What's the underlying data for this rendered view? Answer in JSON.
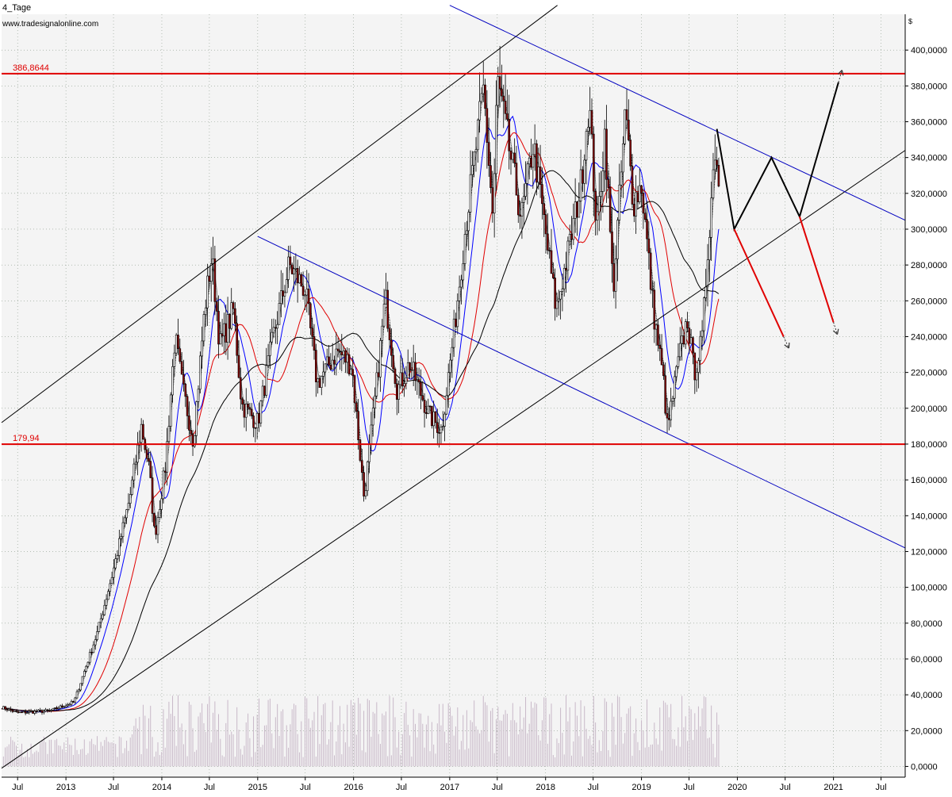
{
  "window_title": "4_Tage",
  "source": "www.tradesignalonline.com",
  "currency_label": "$",
  "colors": {
    "plot_bg": "#f4f4f4",
    "grid": "#8a9a8a",
    "resistance": "#e00000",
    "trend_black": "#000000",
    "trend_blue": "#0000c0",
    "ma_fast": "#000000",
    "ma_blue": "#0000ff",
    "ma_red": "#e00000",
    "ma_slow": "#000000",
    "candle_up": "#ffffff",
    "candle_down": "#8b0000",
    "volume": "#c8b8c8",
    "projection_up": "#000000",
    "projection_down": "#e00000"
  },
  "chart_data": {
    "type": "candlestick",
    "title": "4_Tage",
    "x_axis": {
      "type": "date",
      "range": [
        "2012-05-01",
        "2021-10-01"
      ],
      "ticks": [
        {
          "label": "Jul",
          "date": "2012-07-01"
        },
        {
          "label": "2013",
          "date": "2013-01-01"
        },
        {
          "label": "Jul",
          "date": "2013-07-01"
        },
        {
          "label": "2014",
          "date": "2014-01-01"
        },
        {
          "label": "Jul",
          "date": "2014-07-01"
        },
        {
          "label": "2015",
          "date": "2015-01-01"
        },
        {
          "label": "Jul",
          "date": "2015-07-01"
        },
        {
          "label": "2016",
          "date": "2016-01-01"
        },
        {
          "label": "Jul",
          "date": "2016-07-01"
        },
        {
          "label": "2017",
          "date": "2017-01-01"
        },
        {
          "label": "Jul",
          "date": "2017-07-01"
        },
        {
          "label": "2018",
          "date": "2018-01-01"
        },
        {
          "label": "Jul",
          "date": "2018-07-01"
        },
        {
          "label": "2019",
          "date": "2019-01-01"
        },
        {
          "label": "Jul",
          "date": "2019-07-01"
        },
        {
          "label": "2020",
          "date": "2020-01-01"
        },
        {
          "label": "Jul",
          "date": "2020-07-01"
        },
        {
          "label": "2021",
          "date": "2021-01-01"
        },
        {
          "label": "Jul",
          "date": "2021-07-01"
        }
      ]
    },
    "y_axis": {
      "position": "right",
      "range": [
        -6,
        420
      ],
      "ticks": [
        {
          "value": 0,
          "label": "0,0000"
        },
        {
          "value": 20,
          "label": "20,0000"
        },
        {
          "value": 40,
          "label": "40,0000"
        },
        {
          "value": 60,
          "label": "60,0000"
        },
        {
          "value": 80,
          "label": "80,0000"
        },
        {
          "value": 100,
          "label": "100,0000"
        },
        {
          "value": 120,
          "label": "120,0000"
        },
        {
          "value": 140,
          "label": "140,0000"
        },
        {
          "value": 160,
          "label": "160,0000"
        },
        {
          "value": 180,
          "label": "180,0000"
        },
        {
          "value": 200,
          "label": "200,0000"
        },
        {
          "value": 220,
          "label": "220,0000"
        },
        {
          "value": 240,
          "label": "240,0000"
        },
        {
          "value": 260,
          "label": "260,0000"
        },
        {
          "value": 280,
          "label": "280,0000"
        },
        {
          "value": 300,
          "label": "300,0000"
        },
        {
          "value": 320,
          "label": "320,0000"
        },
        {
          "value": 340,
          "label": "340,0000"
        },
        {
          "value": 360,
          "label": "360,0000"
        },
        {
          "value": 380,
          "label": "380,0000"
        },
        {
          "value": 400,
          "label": "400,0000"
        }
      ]
    },
    "grid": true,
    "horizontal_lines": [
      {
        "value": 386.8644,
        "label": "386,8644"
      },
      {
        "value": 179.94,
        "label": "179,94"
      }
    ],
    "trend_lines": [
      {
        "color": "black",
        "points": [
          [
            "2012-05-01",
            192
          ],
          [
            "2018-02-15",
            425
          ]
        ]
      },
      {
        "color": "black",
        "points": [
          [
            "2012-05-01",
            -1
          ],
          [
            "2021-10-01",
            344
          ]
        ]
      },
      {
        "color": "blue",
        "points": [
          [
            "2015-01-01",
            296
          ],
          [
            "2021-10-01",
            122
          ]
        ]
      },
      {
        "color": "blue",
        "points": [
          [
            "2017-01-01",
            425
          ],
          [
            "2021-10-01",
            305
          ]
        ]
      }
    ],
    "projections": [
      {
        "color": "black",
        "points": [
          [
            "2019-10-15",
            356
          ],
          [
            "2019-12-20",
            300
          ],
          [
            "2020-05-10",
            340
          ],
          [
            "2020-08-25",
            307
          ],
          [
            "2021-01-20",
            382
          ]
        ]
      },
      {
        "color": "red",
        "points": [
          [
            "2019-12-20",
            300
          ],
          [
            "2020-06-25",
            240
          ]
        ]
      },
      {
        "color": "red",
        "points": [
          [
            "2020-08-25",
            307
          ],
          [
            "2021-01-01",
            248
          ]
        ]
      }
    ],
    "price_anchors": [
      [
        "2012-05-01",
        33
      ],
      [
        "2012-07-01",
        30
      ],
      [
        "2012-11-01",
        31
      ],
      [
        "2013-02-01",
        36
      ],
      [
        "2013-05-01",
        75
      ],
      [
        "2013-07-01",
        110
      ],
      [
        "2013-09-01",
        150
      ],
      [
        "2013-10-15",
        190
      ],
      [
        "2013-11-15",
        165
      ],
      [
        "2013-12-05",
        128
      ],
      [
        "2014-01-15",
        168
      ],
      [
        "2014-02-20",
        240
      ],
      [
        "2014-03-20",
        212
      ],
      [
        "2014-05-01",
        182
      ],
      [
        "2014-06-15",
        258
      ],
      [
        "2014-07-10",
        285
      ],
      [
        "2014-08-10",
        235
      ],
      [
        "2014-10-01",
        255
      ],
      [
        "2014-11-01",
        202
      ],
      [
        "2015-01-01",
        192
      ],
      [
        "2015-03-01",
        240
      ],
      [
        "2015-05-01",
        280
      ],
      [
        "2015-07-01",
        266
      ],
      [
        "2015-08-15",
        214
      ],
      [
        "2015-11-01",
        232
      ],
      [
        "2015-12-25",
        224
      ],
      [
        "2016-02-10",
        150
      ],
      [
        "2016-04-01",
        218
      ],
      [
        "2016-05-01",
        262
      ],
      [
        "2016-06-15",
        210
      ],
      [
        "2016-08-01",
        225
      ],
      [
        "2016-10-15",
        196
      ],
      [
        "2016-12-01",
        188
      ],
      [
        "2017-01-15",
        240
      ],
      [
        "2017-03-01",
        300
      ],
      [
        "2017-05-10",
        378
      ],
      [
        "2017-06-15",
        305
      ],
      [
        "2017-07-01",
        384
      ],
      [
        "2017-08-15",
        345
      ],
      [
        "2017-10-01",
        306
      ],
      [
        "2017-11-15",
        348
      ],
      [
        "2017-12-15",
        316
      ],
      [
        "2018-02-10",
        255
      ],
      [
        "2018-04-01",
        290
      ],
      [
        "2018-05-15",
        325
      ],
      [
        "2018-06-15",
        372
      ],
      [
        "2018-07-15",
        298
      ],
      [
        "2018-08-15",
        355
      ],
      [
        "2018-09-15",
        265
      ],
      [
        "2018-11-01",
        365
      ],
      [
        "2018-12-01",
        315
      ],
      [
        "2019-01-01",
        325
      ],
      [
        "2019-02-15",
        255
      ],
      [
        "2019-03-25",
        216
      ],
      [
        "2019-04-10",
        188
      ],
      [
        "2019-05-20",
        225
      ],
      [
        "2019-06-25",
        250
      ],
      [
        "2019-07-20",
        220
      ],
      [
        "2019-08-20",
        238
      ],
      [
        "2019-09-15",
        300
      ],
      [
        "2019-10-10",
        350
      ],
      [
        "2019-10-25",
        318
      ]
    ],
    "moving_averages": [
      {
        "name": "fast",
        "color": "black",
        "dotted": true,
        "lag_weeks": 3
      },
      {
        "name": "blue",
        "color": "blue",
        "lag_weeks": 10
      },
      {
        "name": "red",
        "color": "red",
        "lag_weeks": 24
      },
      {
        "name": "slow",
        "color": "black",
        "lag_weeks": 50
      }
    ]
  }
}
